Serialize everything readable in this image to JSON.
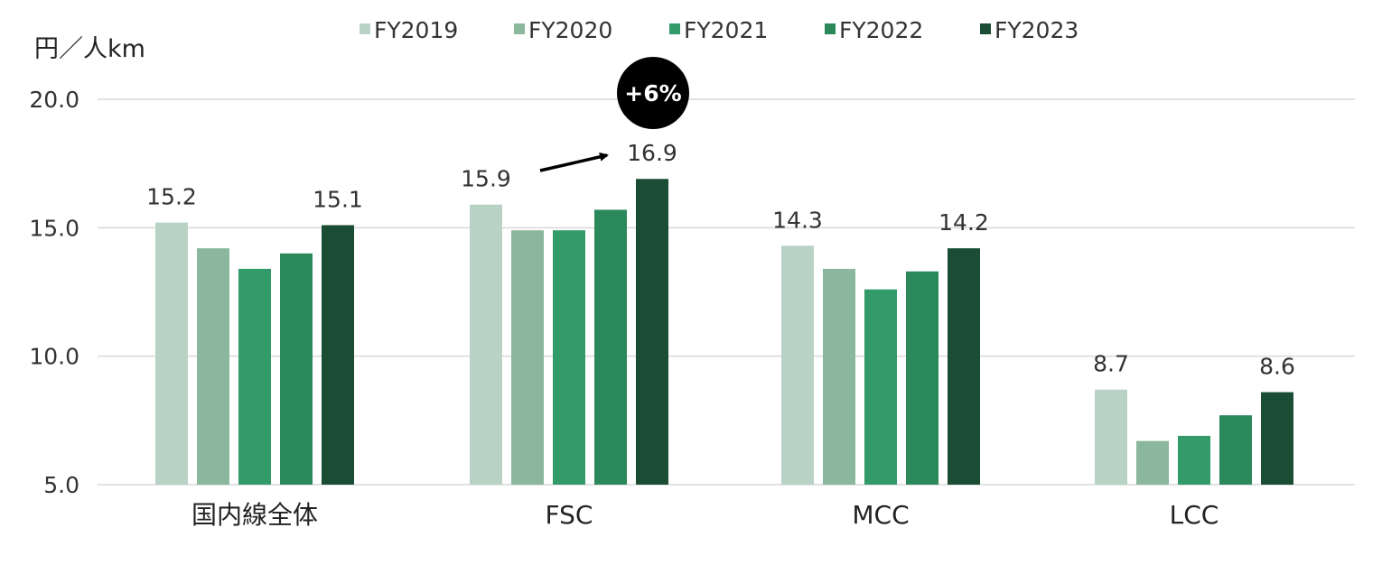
{
  "chart_data": {
    "type": "bar",
    "ylabel": "円／人km",
    "ylim": [
      5,
      20
    ],
    "yticks": [
      "5.0",
      "10.0",
      "15.0",
      "20.0"
    ],
    "ytick_values": [
      5,
      10,
      15,
      20
    ],
    "grid": true,
    "legend_position": "top",
    "categories": [
      "国内線全体",
      "FSC",
      "MCC",
      "LCC"
    ],
    "series": [
      {
        "name": "FY2019",
        "color": "#b8d3c5",
        "values": [
          15.2,
          15.9,
          14.3,
          8.7
        ]
      },
      {
        "name": "FY2020",
        "color": "#8bb89c",
        "values": [
          14.2,
          14.9,
          13.4,
          6.7
        ]
      },
      {
        "name": "FY2021",
        "color": "#339a69",
        "values": [
          13.4,
          14.9,
          12.6,
          6.9
        ]
      },
      {
        "name": "FY2022",
        "color": "#2b885a",
        "values": [
          14.0,
          15.7,
          13.3,
          7.7
        ]
      },
      {
        "name": "FY2023",
        "color": "#1b4d35",
        "values": [
          15.1,
          16.9,
          14.2,
          8.6
        ]
      }
    ],
    "data_labels": [
      {
        "category": "国内線全体",
        "series": "FY2019",
        "text": "15.2"
      },
      {
        "category": "国内線全体",
        "series": "FY2023",
        "text": "15.1"
      },
      {
        "category": "FSC",
        "series": "FY2019",
        "text": "15.9"
      },
      {
        "category": "FSC",
        "series": "FY2023",
        "text": "16.9"
      },
      {
        "category": "MCC",
        "series": "FY2019",
        "text": "14.3"
      },
      {
        "category": "MCC",
        "series": "FY2023",
        "text": "14.2"
      },
      {
        "category": "LCC",
        "series": "FY2019",
        "text": "8.7"
      },
      {
        "category": "LCC",
        "series": "FY2023",
        "text": "8.6"
      }
    ],
    "annotation": {
      "text": "+6%",
      "category": "FSC",
      "from_series": "FY2019",
      "to_series": "FY2023"
    }
  }
}
